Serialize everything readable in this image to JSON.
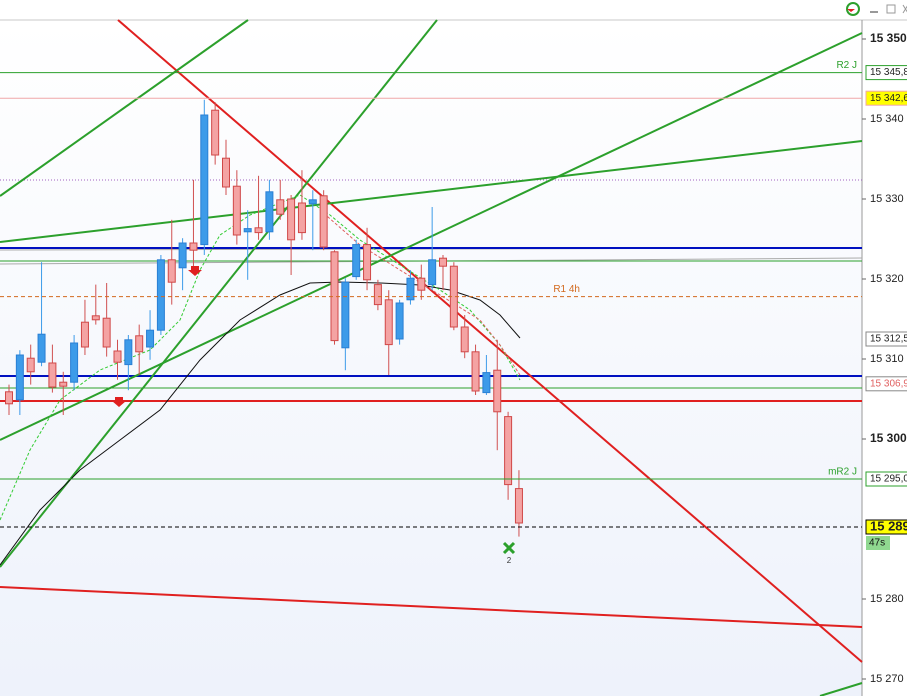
{
  "chart_data": {
    "type": "candlestick",
    "ylim": [
      15267.875,
      15352.375
    ],
    "yticks": [
      {
        "value": 15350,
        "label": "15 350"
      },
      {
        "value": 15340,
        "label": "15 340"
      },
      {
        "value": 15330,
        "label": "15 330"
      },
      {
        "value": 15320,
        "label": "15 320"
      },
      {
        "value": 15310,
        "label": "15 310"
      },
      {
        "value": 15300,
        "label": "15 300"
      },
      {
        "value": 15280,
        "label": "15 280"
      },
      {
        "value": 15270,
        "label": "15 270"
      }
    ],
    "up_color": "#3d9be9",
    "down_color": "#f4a3a3",
    "open": [
      15305.9,
      15304.9,
      15310.1,
      15309.6,
      15309.5,
      15307.1,
      15307.1,
      15314.6,
      15315.4,
      15315.1,
      15311.0,
      15309.3,
      15312.9,
      15311.5,
      15313.6,
      15322.4,
      15321.4,
      15324.5,
      15324.3,
      15341.1,
      15335.1,
      15331.6,
      15325.9,
      15326.4,
      15325.9,
      15329.9,
      15330.0,
      15329.5,
      15329.4,
      15330.4,
      15323.4,
      15311.4,
      15320.3,
      15324.3,
      15319.3,
      15317.4,
      15312.5,
      15317.4,
      15320.1,
      15319.3,
      15322.6,
      15321.6,
      15314.0,
      15310.9,
      15305.8,
      15308.6,
      15302.8,
      15293.8
    ],
    "high": [
      15306.8,
      15311.1,
      15311.8,
      15322.1,
      15311.8,
      15308.4,
      15313.0,
      15317.4,
      15319.3,
      15319.5,
      15312.4,
      15313.0,
      15314.3,
      15316.1,
      15323.0,
      15327.4,
      15325.1,
      15332.4,
      15342.4,
      15342.1,
      15337.4,
      15333.6,
      15328.6,
      15332.9,
      15332.4,
      15332.4,
      15330.5,
      15333.6,
      15331.1,
      15331.1,
      15323.6,
      15320.1,
      15324.9,
      15326.4,
      15319.9,
      15318.6,
      15317.4,
      15321.1,
      15321.8,
      15329.0,
      15323.0,
      15322.1,
      15315.5,
      15311.8,
      15310.5,
      15312.4,
      15303.4,
      15296.1
    ],
    "low": [
      15303.0,
      15303.0,
      15306.8,
      15309.1,
      15305.8,
      15303.0,
      15306.1,
      15310.5,
      15314.3,
      15310.3,
      15307.4,
      15306.1,
      15308.0,
      15309.9,
      15313.0,
      15316.8,
      15318.6,
      15321.1,
      15323.0,
      15334.3,
      15330.5,
      15324.3,
      15319.9,
      15324.9,
      15324.9,
      15327.4,
      15320.5,
      15324.9,
      15323.6,
      15323.6,
      15311.8,
      15308.6,
      15319.9,
      15318.6,
      15316.1,
      15308.0,
      15311.8,
      15316.8,
      15317.4,
      15318.6,
      15318.6,
      15313.6,
      15310.1,
      15305.5,
      15305.5,
      15298.6,
      15292.4,
      15287.8
    ],
    "close": [
      15304.4,
      15310.5,
      15308.4,
      15313.1,
      15306.5,
      15306.6,
      15312.0,
      15311.5,
      15314.9,
      15311.5,
      15309.6,
      15312.4,
      15310.9,
      15313.6,
      15322.4,
      15319.6,
      15324.5,
      15323.6,
      15340.5,
      15335.5,
      15331.5,
      15325.5,
      15326.3,
      15325.8,
      15330.9,
      15328.1,
      15324.9,
      15325.8,
      15329.9,
      15324.0,
      15312.3,
      15319.6,
      15324.3,
      15319.9,
      15316.8,
      15311.8,
      15317.0,
      15320.1,
      15318.6,
      15322.4,
      15321.6,
      15314.0,
      15310.9,
      15306.0,
      15308.3,
      15303.4,
      15294.3,
      15289.5
    ],
    "levels": [
      {
        "value": 15345.8,
        "label": "15 345,8",
        "name": "R2 J",
        "color": "#2ca02c"
      },
      {
        "value": 15342.6,
        "label": "15 342,6",
        "color": "#f0a8a8",
        "tag_fill": "#ffff00"
      },
      {
        "value": 15317.8,
        "name": "R1 4h",
        "color": "#d2691e",
        "dashed": true
      },
      {
        "value": 15312.5,
        "label": "15 312,5"
      },
      {
        "value": 15306.9,
        "label": "15 306,9",
        "text_color": "#e06060"
      },
      {
        "value": 15295.0,
        "label": "15 295,0",
        "name": "mR2 J",
        "color": "#2ca02c"
      },
      {
        "value": 15289,
        "label": "15 289",
        "color": "#000000",
        "dashed": true,
        "tag_fill": "#ffff00"
      }
    ],
    "timer": "47s",
    "signal_count": "2"
  }
}
